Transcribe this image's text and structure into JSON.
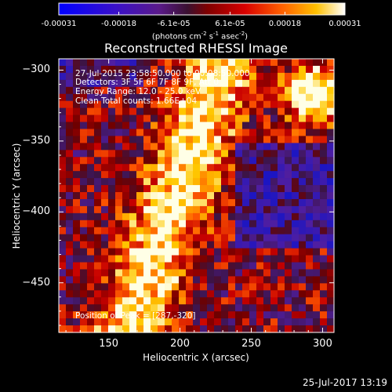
{
  "colorbar": {
    "tick_labels": [
      "-0.00031",
      "-0.00018",
      "-6.1e-05",
      "6.1e-05",
      "0.00018",
      "0.00031"
    ],
    "tick_values": [
      -0.00031,
      -0.00018,
      -6.1e-05,
      6.1e-05,
      0.00018,
      0.00031
    ],
    "range": [
      -0.00031,
      0.00031
    ],
    "units_main": "(photons cm",
    "units_exp1": "-2",
    "units_mid": " s",
    "units_exp2": "-1",
    "units_mid2": " asec",
    "units_exp3": "-2",
    "units_end": ")"
  },
  "chart_data": {
    "type": "heatmap",
    "title": "Reconstructed RHESSI Image",
    "xlabel": "Heliocentric X (arcsec)",
    "ylabel": "Heliocentric Y (arcsec)",
    "xlim": [
      115,
      308
    ],
    "ylim": [
      -485,
      -292
    ],
    "xtick_values": [
      150,
      200,
      250,
      300
    ],
    "xtick_labels": [
      "150",
      "200",
      "250",
      "300"
    ],
    "ytick_values": [
      -300,
      -350,
      -400,
      -450
    ],
    "ytick_labels": [
      "−300",
      "−350",
      "−400",
      "−450"
    ],
    "colormap": "RHESSI hot (blue-purple-red-orange-yellow-white)",
    "peak_x": 287,
    "peak_y": -320,
    "annotations": [
      "27-Jul-2015 23:58:50.000 to 00:08:50.000",
      "Detectors: 3F 5F 6F 7F 8F 9F, Att 0",
      "Energy Range: 12.0 - 25.0 keV",
      "Clean     Total counts: 1.66E+04",
      "Position of Peak = [287,-320]"
    ]
  },
  "footer": {
    "date": "25-Jul-2017 13:19"
  },
  "colors": {
    "background": "#000000",
    "axis": "#ffffff"
  }
}
